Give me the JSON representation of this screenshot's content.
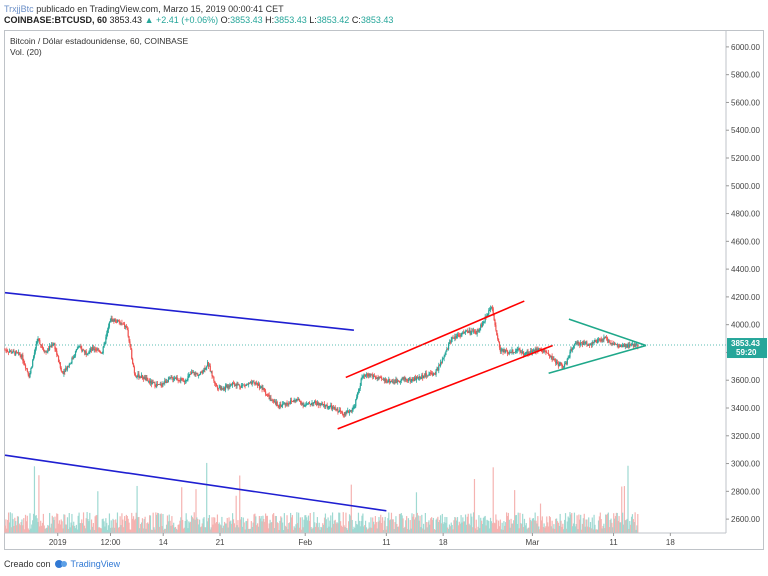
{
  "header": {
    "user": "TrxjjBtc",
    "published": "publicado en TradingView.com, Marzo 15, 2019 00:00:41 CET",
    "symbol": "COINBASE:BTCUSD, 60",
    "last": "3853.43",
    "change": "+2.41 (+0.06%)",
    "o_label": "O:",
    "o_value": "3853.43",
    "h_label": "H:",
    "h_value": "3853.43",
    "l_label": "L:",
    "l_value": "3853.42",
    "c_label": "C:",
    "c_value": "3853.43"
  },
  "legend": {
    "title": "Bitcoin / Dólar estadounidense, 60, COINBASE",
    "volume": "Vol. (20)"
  },
  "price_badge": {
    "value": "3853.43",
    "countdown": "59:20"
  },
  "footer": {
    "prefix": "Creado con",
    "brand": "TradingView"
  },
  "colors": {
    "up": "#26a69a",
    "down": "#ef5350",
    "blue_line": "#1f1fd1",
    "red_line": "#ff0000",
    "green_line": "#1fa88a"
  },
  "chart_data": {
    "type": "candlestick",
    "ylim": [
      2500,
      6100
    ],
    "yticks": [
      2600,
      2800,
      3000,
      3200,
      3400,
      3600,
      3800,
      4000,
      4200,
      4400,
      4600,
      4800,
      5000,
      5200,
      5400,
      5600,
      5800,
      6000
    ],
    "ytick_labels": [
      "2600.00",
      "2800.00",
      "3000.00",
      "3200.00",
      "3400.00",
      "3600.00",
      "3800.00",
      "4000.00",
      "4200.00",
      "4400.00",
      "4600.00",
      "4800.00",
      "5000.00",
      "5200.00",
      "5400.00",
      "5600.00",
      "5800.00",
      "6000.00"
    ],
    "xlim_days": [
      0,
      79
    ],
    "xticks": [
      {
        "day": 6.5,
        "label": "2019"
      },
      {
        "day": 13,
        "label": "12:00"
      },
      {
        "day": 19.5,
        "label": "14"
      },
      {
        "day": 26.5,
        "label": "21"
      },
      {
        "day": 37,
        "label": "Feb"
      },
      {
        "day": 47,
        "label": "11"
      },
      {
        "day": 54,
        "label": "18"
      },
      {
        "day": 65,
        "label": "Mar"
      },
      {
        "day": 75,
        "label": "11"
      },
      {
        "day": 82,
        "label": "18"
      }
    ],
    "price_path": [
      [
        0,
        3820
      ],
      [
        2,
        3780
      ],
      [
        3,
        3630
      ],
      [
        4,
        3900
      ],
      [
        5,
        3800
      ],
      [
        6,
        3870
      ],
      [
        7,
        3650
      ],
      [
        8,
        3720
      ],
      [
        9,
        3840
      ],
      [
        10,
        3800
      ],
      [
        11,
        3830
      ],
      [
        12,
        3800
      ],
      [
        13,
        4040
      ],
      [
        14,
        4020
      ],
      [
        15,
        3980
      ],
      [
        16,
        3640
      ],
      [
        17,
        3620
      ],
      [
        18,
        3580
      ],
      [
        19,
        3560
      ],
      [
        20,
        3600
      ],
      [
        21,
        3620
      ],
      [
        22,
        3590
      ],
      [
        23,
        3650
      ],
      [
        24,
        3640
      ],
      [
        25,
        3720
      ],
      [
        26,
        3560
      ],
      [
        27,
        3540
      ],
      [
        28,
        3580
      ],
      [
        29,
        3560
      ],
      [
        30,
        3570
      ],
      [
        31,
        3580
      ],
      [
        32,
        3520
      ],
      [
        33,
        3440
      ],
      [
        34,
        3420
      ],
      [
        35,
        3440
      ],
      [
        36,
        3460
      ],
      [
        37,
        3420
      ],
      [
        38,
        3440
      ],
      [
        39,
        3420
      ],
      [
        40,
        3410
      ],
      [
        41,
        3380
      ],
      [
        42,
        3360
      ],
      [
        43,
        3400
      ],
      [
        44,
        3620
      ],
      [
        45,
        3640
      ],
      [
        46,
        3610
      ],
      [
        47,
        3600
      ],
      [
        48,
        3590
      ],
      [
        49,
        3610
      ],
      [
        50,
        3600
      ],
      [
        51,
        3620
      ],
      [
        52,
        3640
      ],
      [
        53,
        3650
      ],
      [
        54,
        3750
      ],
      [
        55,
        3900
      ],
      [
        56,
        3930
      ],
      [
        57,
        3950
      ],
      [
        58,
        3940
      ],
      [
        59,
        4020
      ],
      [
        60,
        4150
      ],
      [
        60.5,
        3960
      ],
      [
        61,
        3820
      ],
      [
        62,
        3800
      ],
      [
        63,
        3820
      ],
      [
        64,
        3790
      ],
      [
        65,
        3810
      ],
      [
        66,
        3820
      ],
      [
        67,
        3790
      ],
      [
        68,
        3720
      ],
      [
        69,
        3700
      ],
      [
        70,
        3850
      ],
      [
        71,
        3870
      ],
      [
        72,
        3860
      ],
      [
        73,
        3880
      ],
      [
        74,
        3900
      ],
      [
        75,
        3860
      ],
      [
        76,
        3840
      ],
      [
        77,
        3850
      ],
      [
        78,
        3853
      ]
    ],
    "trendlines": [
      {
        "color": "blue",
        "points": [
          [
            0,
            4230
          ],
          [
            43,
            3960
          ]
        ]
      },
      {
        "color": "blue",
        "points": [
          [
            0,
            3060
          ],
          [
            47,
            2660
          ]
        ]
      },
      {
        "color": "red",
        "points": [
          [
            42,
            3620
          ],
          [
            64,
            4170
          ]
        ]
      },
      {
        "color": "red",
        "points": [
          [
            41,
            3250
          ],
          [
            67.5,
            3850
          ]
        ]
      },
      {
        "color": "green",
        "points": [
          [
            69.5,
            4040
          ],
          [
            79,
            3850
          ]
        ]
      },
      {
        "color": "green",
        "points": [
          [
            67,
            3650
          ],
          [
            79,
            3850
          ]
        ]
      }
    ],
    "last_price": 3853.43
  }
}
